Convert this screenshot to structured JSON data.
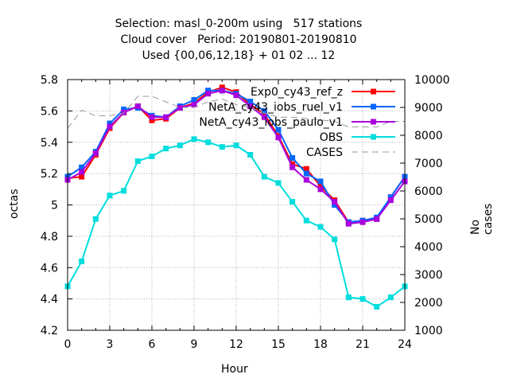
{
  "chart_data": {
    "type": "line",
    "title": [
      "Selection: masl_0-200m using   517 stations",
      "Cloud cover   Period: 20190801-20190810",
      "Used {00,06,12,18} + 01 02 ... 12"
    ],
    "xlabel": "Hour",
    "ylabel": "octas",
    "y2label": "No cases",
    "xlim": [
      0,
      24
    ],
    "ylim": [
      4.2,
      5.8
    ],
    "y2lim": [
      1000,
      10000
    ],
    "xticks": [
      "0",
      "3",
      "6",
      "9",
      "12",
      "15",
      "18",
      "21",
      "24"
    ],
    "yticks": [
      "4.2",
      "4.4",
      "4.6",
      "4.8",
      "5",
      "5.2",
      "5.4",
      "5.6",
      "5.8"
    ],
    "y2ticks": [
      "1000",
      "2000",
      "3000",
      "4000",
      "5000",
      "6000",
      "7000",
      "8000",
      "9000",
      "10000"
    ],
    "grid": true,
    "legend_position": "top-right",
    "x": [
      0,
      1,
      2,
      3,
      4,
      5,
      6,
      7,
      8,
      9,
      10,
      11,
      12,
      13,
      14,
      15,
      16,
      17,
      18,
      19,
      20,
      21,
      22,
      23,
      24
    ],
    "series": [
      {
        "name": "Exp0_cy43_ref_z",
        "color": "#ff0000",
        "marker": "square",
        "axis": "y",
        "values": [
          5.17,
          5.18,
          5.32,
          5.49,
          5.59,
          5.63,
          5.54,
          5.55,
          5.62,
          5.65,
          5.72,
          5.75,
          5.72,
          5.64,
          5.58,
          5.44,
          5.26,
          5.23,
          5.12,
          5.03,
          4.89,
          4.9,
          4.91,
          5.05,
          5.18
        ]
      },
      {
        "name": "NetA_cy43_iobs_ruel_v1",
        "color": "#0066ff",
        "marker": "square",
        "axis": "y",
        "values": [
          5.18,
          5.24,
          5.34,
          5.52,
          5.61,
          5.62,
          5.57,
          5.56,
          5.63,
          5.67,
          5.73,
          5.73,
          5.71,
          5.66,
          5.6,
          5.48,
          5.3,
          5.2,
          5.15,
          5.0,
          4.89,
          4.9,
          4.92,
          5.05,
          5.18
        ]
      },
      {
        "name": "NetA_cy43_iobs_paulo_v1",
        "color": "#aa00dd",
        "marker": "square",
        "axis": "y",
        "values": [
          5.16,
          5.21,
          5.33,
          5.5,
          5.59,
          5.63,
          5.56,
          5.56,
          5.62,
          5.64,
          5.71,
          5.73,
          5.7,
          5.63,
          5.56,
          5.43,
          5.24,
          5.16,
          5.1,
          5.02,
          4.88,
          4.89,
          4.91,
          5.03,
          5.15
        ]
      },
      {
        "name": "OBS",
        "color": "#00dddd",
        "marker": "square",
        "axis": "y",
        "values": [
          4.48,
          4.64,
          4.91,
          5.06,
          5.09,
          5.28,
          5.31,
          5.36,
          5.38,
          5.42,
          5.4,
          5.37,
          5.38,
          5.32,
          5.18,
          5.14,
          5.02,
          4.9,
          4.86,
          4.78,
          4.41,
          4.4,
          4.35,
          4.41,
          4.48
        ]
      },
      {
        "name": "CASES",
        "color": "#999999",
        "marker": "none",
        "dashed": true,
        "axis": "y2",
        "values": [
          8250,
          8900,
          8700,
          8700,
          8800,
          9400,
          9400,
          9200,
          9000,
          9000,
          9200,
          9300,
          9100,
          9000,
          8800,
          8650,
          8650,
          8600,
          8550,
          8500,
          8300,
          8300,
          8300,
          8500,
          8500
        ]
      }
    ]
  }
}
